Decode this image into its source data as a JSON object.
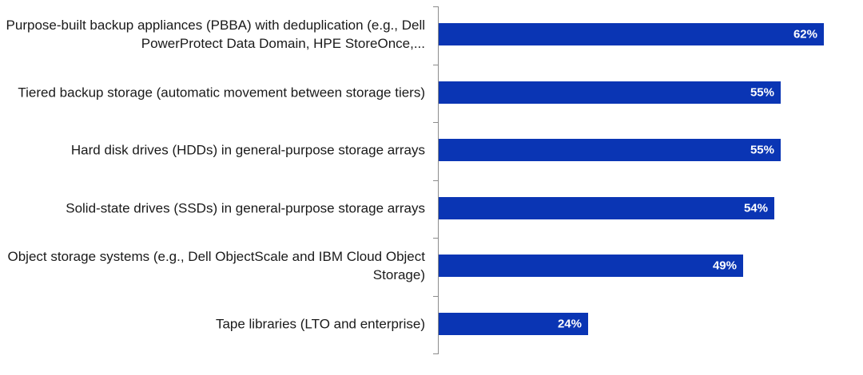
{
  "chart_data": {
    "type": "bar",
    "orientation": "horizontal",
    "categories": [
      "Purpose-built backup appliances (PBBA) with deduplication (e.g., Dell PowerProtect Data Domain, HPE StoreOnce,...",
      "Tiered backup storage (automatic movement between storage tiers)",
      "Hard disk drives (HDDs) in general-purpose storage arrays",
      "Solid-state drives (SSDs) in general-purpose storage arrays",
      "Object storage systems (e.g., Dell ObjectScale and IBM Cloud Object Storage)",
      "Tape libraries (LTO and enterprise)"
    ],
    "values": [
      62,
      55,
      55,
      54,
      49,
      24
    ],
    "value_labels": [
      "62%",
      "55%",
      "55%",
      "54%",
      "49%",
      "24%"
    ],
    "unit": "%",
    "xlim": [
      0,
      72
    ],
    "grid": false,
    "legend": "none",
    "bar_color": "#0a35b4",
    "label_color": "#ffffff"
  }
}
